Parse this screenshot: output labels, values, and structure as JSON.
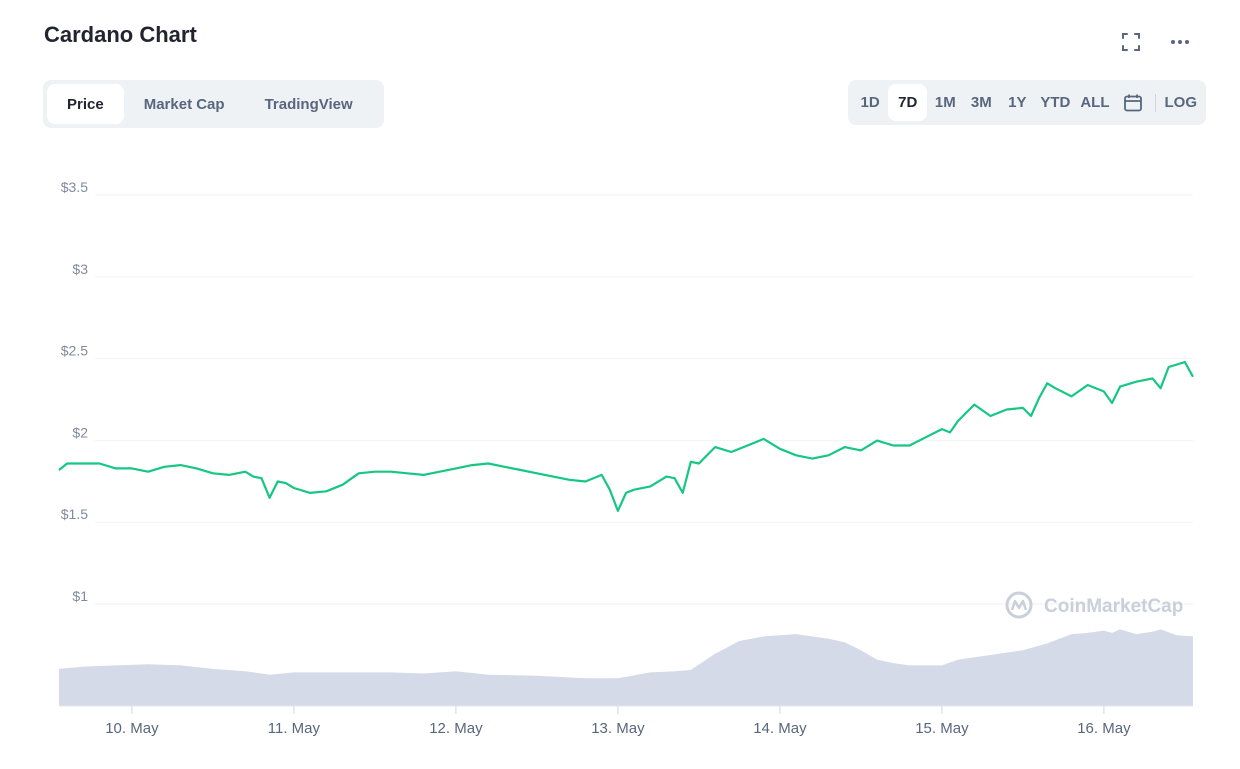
{
  "header": {
    "title": "Cardano Chart",
    "fullscreen_icon": "expand-icon",
    "more_icon": "more-horizontal-icon"
  },
  "tabs": [
    {
      "label": "Price",
      "active": true
    },
    {
      "label": "Market Cap",
      "active": false
    },
    {
      "label": "TradingView",
      "active": false
    }
  ],
  "ranges": [
    {
      "label": "1D",
      "active": false
    },
    {
      "label": "7D",
      "active": true
    },
    {
      "label": "1M",
      "active": false
    },
    {
      "label": "3M",
      "active": false
    },
    {
      "label": "1Y",
      "active": false
    },
    {
      "label": "YTD",
      "active": false
    },
    {
      "label": "ALL",
      "active": false
    }
  ],
  "range_icons": {
    "calendar": "calendar-icon"
  },
  "log_label": "LOG",
  "watermark": "CoinMarketCap",
  "colors": {
    "price_line": "#16c784",
    "volume_fill": "#cfd6e4",
    "grid": "#eff2f5",
    "axis_text": "#808a9d"
  },
  "chart_data": {
    "type": "line",
    "x_labels": [
      "10. May",
      "11. May",
      "12. May",
      "13. May",
      "14. May",
      "15. May",
      "16. May"
    ],
    "y_ticks": [
      {
        "value": 1,
        "label": "$1"
      },
      {
        "value": 1.5,
        "label": "$1.5"
      },
      {
        "value": 2,
        "label": "$2"
      },
      {
        "value": 2.5,
        "label": "$2.5"
      },
      {
        "value": 3,
        "label": "$3"
      },
      {
        "value": 3.5,
        "label": "$3.5"
      }
    ],
    "ylim": [
      1,
      3.5
    ],
    "x_range": [
      9.55,
      16.55
    ],
    "grid": true,
    "legend": false,
    "series": [
      {
        "type": "line",
        "x": [
          9.55,
          9.6,
          9.7,
          9.8,
          9.9,
          10.0,
          10.1,
          10.2,
          10.3,
          10.4,
          10.5,
          10.6,
          10.7,
          10.75,
          10.8,
          10.85,
          10.9,
          10.95,
          11.0,
          11.1,
          11.2,
          11.3,
          11.4,
          11.5,
          11.6,
          11.7,
          11.8,
          11.9,
          12.0,
          12.1,
          12.2,
          12.3,
          12.4,
          12.5,
          12.6,
          12.7,
          12.8,
          12.9,
          12.95,
          13.0,
          13.05,
          13.1,
          13.2,
          13.3,
          13.35,
          13.4,
          13.45,
          13.5,
          13.6,
          13.7,
          13.8,
          13.9,
          14.0,
          14.1,
          14.2,
          14.3,
          14.4,
          14.5,
          14.6,
          14.7,
          14.8,
          14.9,
          15.0,
          15.05,
          15.1,
          15.2,
          15.3,
          15.4,
          15.5,
          15.55,
          15.6,
          15.65,
          15.7,
          15.8,
          15.9,
          16.0,
          16.05,
          16.1,
          16.2,
          16.3,
          16.35,
          16.4,
          16.5,
          16.55
        ],
        "y": [
          1.77,
          1.81,
          1.81,
          1.81,
          1.78,
          1.78,
          1.76,
          1.79,
          1.8,
          1.78,
          1.75,
          1.74,
          1.76,
          1.73,
          1.72,
          1.6,
          1.7,
          1.69,
          1.66,
          1.63,
          1.64,
          1.68,
          1.75,
          1.76,
          1.76,
          1.75,
          1.74,
          1.76,
          1.78,
          1.8,
          1.81,
          1.79,
          1.77,
          1.75,
          1.73,
          1.71,
          1.7,
          1.74,
          1.65,
          1.52,
          1.63,
          1.65,
          1.67,
          1.73,
          1.72,
          1.63,
          1.82,
          1.81,
          1.91,
          1.88,
          1.92,
          1.96,
          1.9,
          1.86,
          1.84,
          1.86,
          1.91,
          1.89,
          1.95,
          1.92,
          1.92,
          1.97,
          2.02,
          2.0,
          2.07,
          2.17,
          2.1,
          2.14,
          2.15,
          2.1,
          2.21,
          2.3,
          2.27,
          2.22,
          2.29,
          2.25,
          2.18,
          2.28,
          2.31,
          2.33,
          2.27,
          2.4,
          2.43,
          2.34
        ]
      },
      {
        "type": "area",
        "name": "volume",
        "x": [
          9.55,
          9.7,
          9.9,
          10.1,
          10.3,
          10.5,
          10.7,
          10.85,
          11.0,
          11.3,
          11.6,
          11.8,
          12.0,
          12.2,
          12.5,
          12.8,
          13.0,
          13.2,
          13.35,
          13.45,
          13.6,
          13.75,
          13.9,
          14.1,
          14.3,
          14.4,
          14.5,
          14.6,
          14.7,
          14.8,
          15.0,
          15.1,
          15.3,
          15.5,
          15.65,
          15.8,
          15.9,
          16.0,
          16.05,
          16.1,
          16.2,
          16.3,
          16.35,
          16.45,
          16.55
        ],
        "y": [
          0.32,
          0.34,
          0.35,
          0.36,
          0.35,
          0.32,
          0.3,
          0.27,
          0.29,
          0.29,
          0.29,
          0.28,
          0.3,
          0.27,
          0.26,
          0.24,
          0.24,
          0.29,
          0.3,
          0.31,
          0.45,
          0.56,
          0.6,
          0.62,
          0.58,
          0.55,
          0.48,
          0.4,
          0.37,
          0.35,
          0.35,
          0.4,
          0.44,
          0.48,
          0.54,
          0.62,
          0.63,
          0.65,
          0.63,
          0.66,
          0.62,
          0.64,
          0.66,
          0.61,
          0.6
        ]
      }
    ]
  }
}
